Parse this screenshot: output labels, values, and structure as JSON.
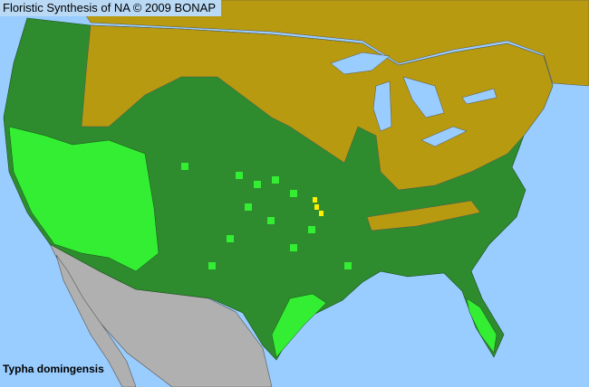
{
  "header": {
    "title": "Floristic Synthesis of NA © 2009 BONAP"
  },
  "species_label": "Typha domingensis",
  "colors": {
    "water": "#99ccff",
    "absent_state": "#b89a10",
    "present_state": "#2e8b2e",
    "present_county": "#33ee33",
    "yellow_county": "#ffee00",
    "outside_range": "#b0b0b0"
  }
}
